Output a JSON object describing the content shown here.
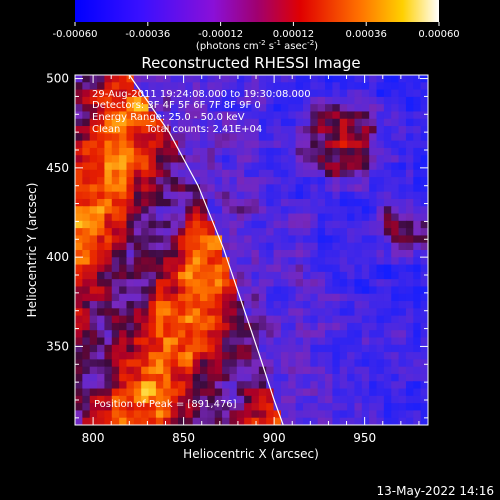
{
  "chart_data": {
    "type": "heatmap",
    "title": "Reconstructed RHESSI Image",
    "xlabel": "Heliocentric X (arcsec)",
    "ylabel": "Heliocentric Y (arcsec)",
    "xlim": [
      790,
      985
    ],
    "ylim": [
      306,
      502
    ],
    "x_ticks": [
      "800",
      "850",
      "900",
      "950"
    ],
    "y_ticks": [
      "350",
      "400",
      "450",
      "500"
    ],
    "x_tick_values": [
      800,
      850,
      900,
      950
    ],
    "y_tick_values": [
      350,
      400,
      450,
      500
    ],
    "colorbar": {
      "tick_labels": [
        "-0.00060",
        "-0.00036",
        "-0.00012",
        "0.00012",
        "0.00036",
        "0.00060"
      ],
      "tick_values": [
        -0.0006,
        -0.00036,
        -0.00012,
        0.00012,
        0.00036,
        0.0006
      ],
      "range": [
        -0.0006,
        0.0006
      ],
      "units_prefix": "(photons cm",
      "units_exp1": "-2",
      "units_mid": " s",
      "units_exp2": "-1",
      "units_mid2": " asec",
      "units_exp3": "-2",
      "units_suffix": ")"
    },
    "annotations": {
      "time": "29-Aug-2011 19:24:08.000 to 19:30:08.000",
      "detectors": "Detectors: 3F 4F 5F 6F 7F 8F 9F 0",
      "energy": "Energy Range: 25.0 - 50.0 keV",
      "algorithm": "Clean",
      "counts": "Total counts: 2.41E+04",
      "peak": "Position of Peak = [891,476]"
    },
    "limb": [
      [
        820,
        502
      ],
      [
        842,
        470
      ],
      [
        858,
        440
      ],
      [
        872,
        405
      ],
      [
        882,
        375
      ],
      [
        892,
        345
      ],
      [
        900,
        320
      ],
      [
        905,
        306
      ]
    ],
    "peak": [
      891,
      476
    ],
    "colors": {
      "background": "#000000",
      "text": "#ffffff",
      "limb": "#ffffff"
    }
  },
  "footer": {
    "date": "13-May-2022 14:16"
  }
}
